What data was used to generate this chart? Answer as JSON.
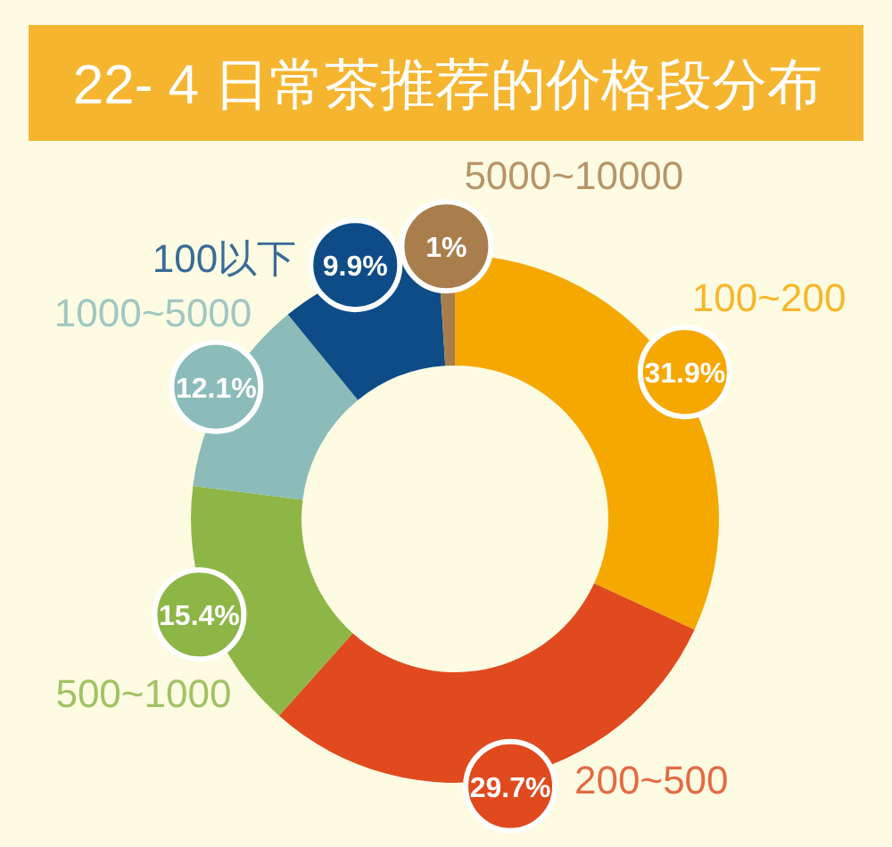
{
  "chart_data": {
    "type": "donut",
    "title": "22- 4 日常茶推荐的价格段分布",
    "categories": [
      "100~200",
      "200~500",
      "500~1000",
      "1000~5000",
      "100以下",
      "5000~10000"
    ],
    "values": [
      31.9,
      29.7,
      15.4,
      12.1,
      9.9,
      1
    ],
    "colors": [
      "#f5a800",
      "#e04a1e",
      "#8db647",
      "#8bbcb9",
      "#0e4c87",
      "#a97e4c"
    ],
    "value_labels": [
      "31.9%",
      "29.7%",
      "15.4%",
      "12.1%",
      "9.9%",
      "1%"
    ]
  }
}
